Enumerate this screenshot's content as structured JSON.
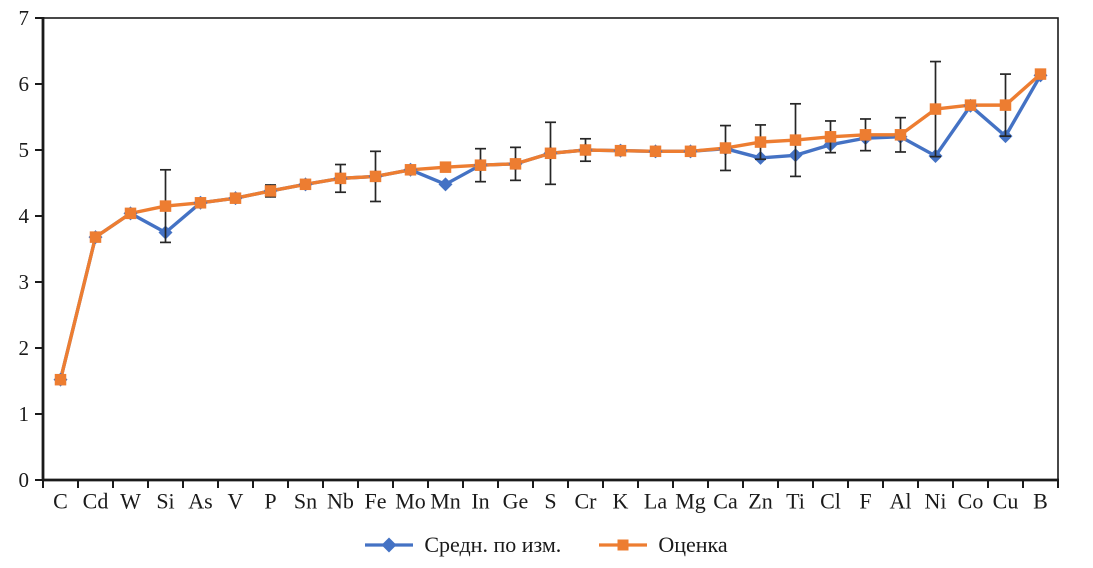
{
  "chart_data": {
    "type": "line",
    "title": "",
    "xlabel": "",
    "ylabel": "",
    "ylim": [
      0,
      7
    ],
    "yticks": [
      0,
      1,
      2,
      3,
      4,
      5,
      6,
      7
    ],
    "grid": false,
    "legend_position": "bottom",
    "axis_color": "#1a1a1a",
    "error_bar_color": "#262626",
    "categories": [
      "C",
      "Cd",
      "W",
      "Si",
      "As",
      "V",
      "P",
      "Sn",
      "Nb",
      "Fe",
      "Mo",
      "Mn",
      "In",
      "Ge",
      "S",
      "Cr",
      "K",
      "La",
      "Mg",
      "Ca",
      "Zn",
      "Ti",
      "Cl",
      "F",
      "Al",
      "Ni",
      "Co",
      "Cu",
      "B"
    ],
    "series": [
      {
        "name": "Средн. по изм.",
        "color": "#4472C4",
        "marker": "diamond",
        "values": [
          1.52,
          3.68,
          4.04,
          3.75,
          4.2,
          4.27,
          4.38,
          4.48,
          4.57,
          4.6,
          4.7,
          4.48,
          4.77,
          4.79,
          4.95,
          5.0,
          4.99,
          4.98,
          4.98,
          5.02,
          4.88,
          4.92,
          5.08,
          5.18,
          5.2,
          4.91,
          5.67,
          5.21,
          6.13
        ],
        "error_bars": null
      },
      {
        "name": "Оценка",
        "color": "#ED7D31",
        "marker": "square",
        "values": [
          1.52,
          3.68,
          4.04,
          4.15,
          4.2,
          4.27,
          4.38,
          4.48,
          4.57,
          4.6,
          4.7,
          4.74,
          4.77,
          4.79,
          4.95,
          5.0,
          4.99,
          4.98,
          4.98,
          5.03,
          5.12,
          5.15,
          5.2,
          5.23,
          5.23,
          5.62,
          5.68,
          5.68,
          6.15
        ],
        "error_bars": [
          null,
          null,
          null,
          0.55,
          null,
          null,
          0.09,
          null,
          0.21,
          0.38,
          null,
          null,
          0.25,
          0.25,
          0.47,
          0.17,
          null,
          null,
          null,
          0.34,
          0.26,
          0.55,
          0.24,
          0.24,
          0.26,
          0.72,
          null,
          0.47,
          null
        ]
      }
    ]
  }
}
